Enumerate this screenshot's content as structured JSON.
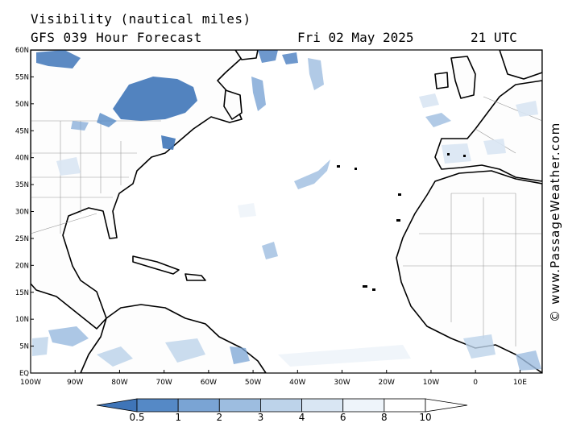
{
  "header": {
    "title": "Visibility (nautical miles)",
    "model_line": "GFS 039 Hour Forecast",
    "date": "Fri 02 May 2025",
    "time": "21 UTC"
  },
  "watermark": "© www.PassageWeather.com",
  "map": {
    "lon_range": [
      -100,
      15
    ],
    "lat_range": [
      0,
      60
    ],
    "lat_ticks": [
      "60N",
      "55N",
      "50N",
      "45N",
      "40N",
      "35N",
      "30N",
      "25N",
      "20N",
      "15N",
      "10N",
      "5N",
      "EQ"
    ],
    "lat_values": [
      60,
      55,
      50,
      45,
      40,
      35,
      30,
      25,
      20,
      15,
      10,
      5,
      0
    ],
    "lon_ticks": [
      "100W",
      "90W",
      "80W",
      "70W",
      "60W",
      "50W",
      "40W",
      "30W",
      "20W",
      "10W",
      "0",
      "10E"
    ],
    "lon_values": [
      -100,
      -90,
      -80,
      -70,
      -60,
      -50,
      -40,
      -30,
      -20,
      -10,
      0,
      10
    ]
  },
  "colorbar": {
    "labels": [
      "0.5",
      "1",
      "2",
      "3",
      "4",
      "6",
      "8",
      "10"
    ],
    "colors": [
      "#3f75b8",
      "#5589c6",
      "#7aa4d4",
      "#9dbde0",
      "#bdd3ea",
      "#d9e6f3",
      "#eef4fa",
      "#ffffff"
    ]
  }
}
